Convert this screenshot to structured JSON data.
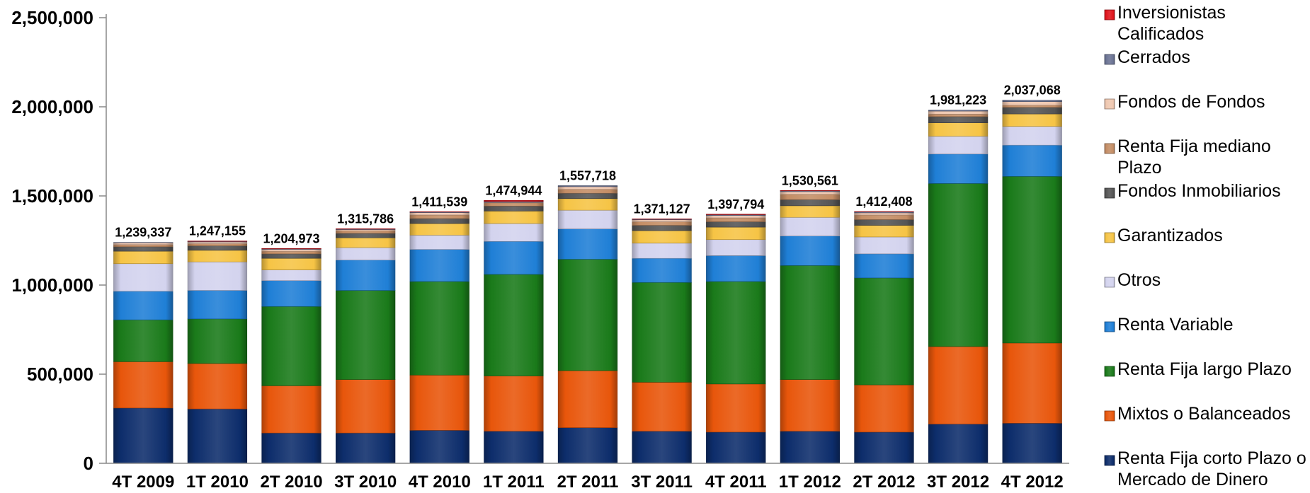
{
  "chart_data": {
    "type": "bar",
    "stacked": true,
    "categories": [
      "4T 2009",
      "1T 2010",
      "2T 2010",
      "3T 2010",
      "4T 2010",
      "1T 2011",
      "2T 2011",
      "3T 2011",
      "4T 2011",
      "1T 2012",
      "2T 2012",
      "3T 2012",
      "4T 2012"
    ],
    "totals": [
      1239337,
      1247155,
      1204973,
      1315786,
      1411539,
      1474944,
      1557718,
      1371127,
      1397794,
      1530561,
      1412408,
      1981223,
      2037068
    ],
    "total_labels": [
      "1,239,337",
      "1,247,155",
      "1,204,973",
      "1,315,786",
      "1,411,539",
      "1,474,944",
      "1,557,718",
      "1,371,127",
      "1,397,794",
      "1,530,561",
      "1,412,408",
      "1,981,223",
      "2,037,068"
    ],
    "ylim": [
      0,
      2500000
    ],
    "y_ticks": [
      0,
      500000,
      1000000,
      1500000,
      2000000,
      2500000
    ],
    "y_tick_labels": [
      "0",
      "500,000",
      "1,000,000",
      "1,500,000",
      "2,000,000",
      "2,500,000"
    ],
    "legend_position": "right",
    "series": [
      {
        "name": "Renta Fija corto Plazo o Mercado de Dinero",
        "color": "#0d2d6b",
        "values": [
          310000,
          305000,
          170000,
          170000,
          185000,
          180000,
          200000,
          180000,
          175000,
          180000,
          175000,
          220000,
          225000
        ]
      },
      {
        "name": "Mixtos o Balanceados",
        "color": "#e8560b",
        "values": [
          260000,
          255000,
          265000,
          300000,
          310000,
          310000,
          320000,
          275000,
          270000,
          290000,
          265000,
          435000,
          450000
        ]
      },
      {
        "name": "Renta Fija largo Plazo",
        "color": "#1a7a1a",
        "values": [
          235000,
          250000,
          445000,
          500000,
          525000,
          570000,
          625000,
          560000,
          575000,
          640000,
          600000,
          915000,
          935000
        ]
      },
      {
        "name": "Renta Variable",
        "color": "#1f7fd6",
        "values": [
          160000,
          160000,
          145000,
          170000,
          180000,
          185000,
          170000,
          135000,
          145000,
          165000,
          135000,
          165000,
          175000
        ]
      },
      {
        "name": "Otros",
        "color": "#d3d3ee",
        "values": [
          155000,
          160000,
          60000,
          70000,
          80000,
          100000,
          105000,
          85000,
          90000,
          105000,
          95000,
          100000,
          105000
        ]
      },
      {
        "name": "Garantizados",
        "color": "#f6c445",
        "values": [
          70000,
          65000,
          65000,
          55000,
          65000,
          70000,
          65000,
          70000,
          70000,
          65000,
          65000,
          75000,
          70000
        ]
      },
      {
        "name": "Fondos Inmobiliarios",
        "color": "#555555",
        "values": [
          25000,
          25000,
          25000,
          25000,
          28000,
          28000,
          30000,
          30000,
          30000,
          34000,
          32000,
          35000,
          37000
        ]
      },
      {
        "name": "Renta Fija mediano Plazo",
        "color": "#c48d65",
        "values": [
          12000,
          12000,
          15000,
          15000,
          20000,
          18000,
          22000,
          20000,
          22000,
          30000,
          26000,
          14000,
          12000
        ]
      },
      {
        "name": "Fondos de Fondos",
        "color": "#efc7b0",
        "values": [
          10000,
          10000,
          10000,
          6000,
          13000,
          3000,
          15000,
          11000,
          13000,
          15000,
          12000,
          17000,
          20000
        ]
      },
      {
        "name": "Cerrados",
        "color": "#6b7394",
        "values": [
          2337,
          3155,
          3973,
          3786,
          4539,
          4944,
          5718,
          4127,
          4794,
          5561,
          5408,
          5223,
          8068
        ]
      },
      {
        "name": "Inversionistas Calificados",
        "color": "#e0141c",
        "values": [
          0,
          2000,
          1000,
          1000,
          1000,
          6000,
          0,
          1000,
          3000,
          1000,
          2000,
          0,
          0
        ]
      }
    ],
    "legend_order": [
      "Inversionistas Calificados",
      "Cerrados",
      "Fondos de Fondos",
      "Renta Fija mediano Plazo",
      "Fondos Inmobiliarios",
      "Garantizados",
      "Otros",
      "Renta Variable",
      "Renta Fija largo Plazo",
      "Mixtos o Balanceados",
      "Renta Fija corto Plazo o Mercado de Dinero"
    ],
    "legend_lines": {
      "Inversionistas Calificados": [
        "Inversionistas",
        "Calificados"
      ],
      "Cerrados": [
        "Cerrados"
      ],
      "Fondos de Fondos": [
        "Fondos de Fondos"
      ],
      "Renta Fija mediano Plazo": [
        "Renta Fija mediano",
        "Plazo"
      ],
      "Fondos Inmobiliarios": [
        "Fondos Inmobiliarios"
      ],
      "Garantizados": [
        "Garantizados"
      ],
      "Otros": [
        "Otros"
      ],
      "Renta Variable": [
        "Renta Variable"
      ],
      "Renta Fija largo Plazo": [
        "Renta Fija largo Plazo"
      ],
      "Mixtos o Balanceados": [
        "Mixtos o Balanceados"
      ],
      "Renta Fija corto Plazo o Mercado de Dinero": [
        "Renta Fija corto Plazo o",
        "Mercado de Dinero"
      ]
    }
  }
}
